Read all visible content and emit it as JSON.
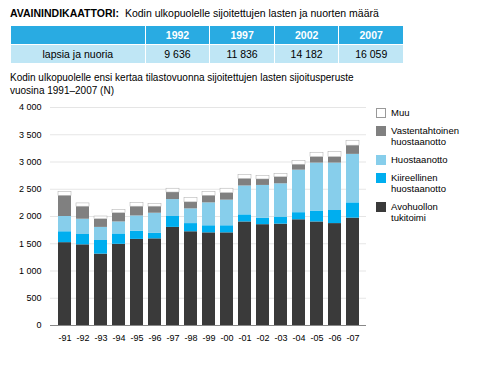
{
  "chart_data": [
    {
      "type": "table",
      "title": "AVAININDIKAATTORI:",
      "subtitle": "Kodin ulkopuolelle sijoitettujen lasten ja nuorten määrä",
      "categories": [
        "1992",
        "1997",
        "2002",
        "2007"
      ],
      "color": "#29ABE2",
      "series": [
        {
          "name": "lapsia ja nuoria",
          "color": "#BFE6F5",
          "values": [
            9636,
            11836,
            14182,
            16059
          ],
          "value_labels": [
            "9 636",
            "11 836",
            "14 182",
            "16 059"
          ]
        }
      ]
    },
    {
      "type": "bar",
      "title": "Kodin ulkopuolelle ensi kertaa tilastovuonna sijoitettujen lasten sijoitusperuste\nvuosina 1991–2007 (N)",
      "stacked": true,
      "categories": [
        "-91",
        "-92",
        "-93",
        "-94",
        "-95",
        "-96",
        "-97",
        "-98",
        "-99",
        "-00",
        "-01",
        "-02",
        "-03",
        "-04",
        "-05",
        "-06",
        "-07"
      ],
      "series": [
        {
          "name": "Avohuollon\ntukitoimi",
          "color": "#3a3a3a",
          "values": [
            1520,
            1480,
            1310,
            1490,
            1580,
            1590,
            1800,
            1720,
            1700,
            1700,
            1900,
            1850,
            1860,
            1940,
            1900,
            1870,
            1970
          ]
        },
        {
          "name": "Kiireellinen\nhuostaanotto",
          "color": "#00AEEF",
          "values": [
            200,
            190,
            250,
            190,
            150,
            100,
            200,
            150,
            130,
            130,
            130,
            120,
            130,
            130,
            200,
            240,
            280
          ]
        },
        {
          "name": "Huostaanotto",
          "color": "#87CEEB",
          "values": [
            280,
            280,
            240,
            220,
            280,
            370,
            310,
            270,
            420,
            470,
            530,
            600,
            610,
            780,
            880,
            870,
            890
          ]
        },
        {
          "name": "Vastentahtoinen\nhuostaanotto",
          "color": "#808080",
          "values": [
            380,
            230,
            150,
            160,
            170,
            120,
            130,
            120,
            130,
            130,
            130,
            110,
            120,
            100,
            110,
            110,
            160
          ]
        },
        {
          "name": "Muu",
          "color": "#FFFFFF",
          "values": [
            70,
            60,
            50,
            60,
            70,
            50,
            70,
            80,
            70,
            80,
            70,
            60,
            60,
            70,
            80,
            90,
            90
          ]
        }
      ],
      "ylim": [
        0,
        4000
      ],
      "yticks": [
        0,
        500,
        {
          "value": 1000,
          "label": "1 000"
        },
        {
          "value": 1500,
          "label": "1 500"
        },
        {
          "value": 2000,
          "label": "2 000"
        },
        {
          "value": 2500,
          "label": "2 500"
        },
        {
          "value": 3000,
          "label": "3 000"
        },
        {
          "value": 3500,
          "label": "3 500"
        },
        {
          "value": 4000,
          "label": "4 000"
        }
      ],
      "grid": true,
      "legend": "right"
    }
  ]
}
